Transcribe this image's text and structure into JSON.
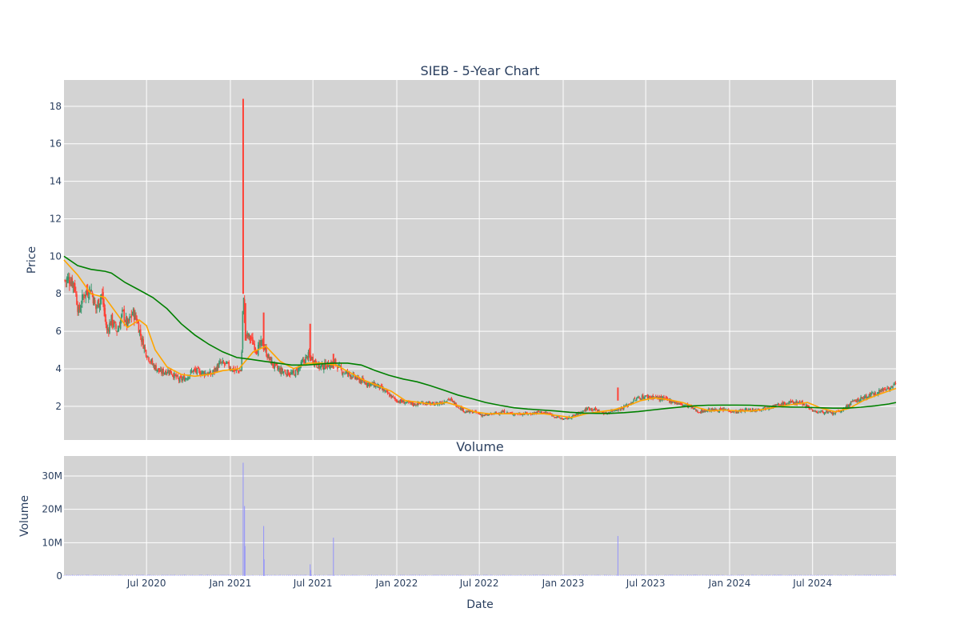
{
  "chart_data": [
    {
      "type": "candlestick",
      "title": "SIEB - 5-Year Chart",
      "ylabel": "Price",
      "ylim": [
        0.2,
        19.4
      ],
      "yticks": [
        2,
        4,
        6,
        8,
        10,
        12,
        14,
        16,
        18
      ],
      "ytick_labels": [
        "2",
        "4",
        "6",
        "8",
        "10",
        "12",
        "14",
        "16",
        "18"
      ],
      "xlim": [
        "2020-01-02",
        "2024-12-31"
      ],
      "grid": true,
      "plot_background": "#d3d3d3",
      "colors": {
        "increasing": "#3d9970",
        "decreasing": "#ff4136",
        "ma_short": "#ffa500",
        "ma_long": "#008000"
      },
      "close_path": [
        [
          "2020-01-02",
          8.7
        ],
        [
          "2020-01-15",
          8.8
        ],
        [
          "2020-01-25",
          8.5
        ],
        [
          "2020-02-03",
          7.0
        ],
        [
          "2020-02-15",
          8.0
        ],
        [
          "2020-03-01",
          8.3
        ],
        [
          "2020-03-12",
          7.2
        ],
        [
          "2020-03-25",
          8.0
        ],
        [
          "2020-04-05",
          6.0
        ],
        [
          "2020-04-15",
          6.6
        ],
        [
          "2020-04-28",
          6.0
        ],
        [
          "2020-05-10",
          7.0
        ],
        [
          "2020-05-20",
          6.3
        ],
        [
          "2020-06-01",
          7.0
        ],
        [
          "2020-06-10",
          6.6
        ],
        [
          "2020-06-20",
          5.6
        ],
        [
          "2020-07-01",
          4.8
        ],
        [
          "2020-07-15",
          4.2
        ],
        [
          "2020-08-01",
          3.8
        ],
        [
          "2020-08-20",
          3.9
        ],
        [
          "2020-09-10",
          3.4
        ],
        [
          "2020-09-25",
          3.5
        ],
        [
          "2020-10-10",
          3.9
        ],
        [
          "2020-11-01",
          3.8
        ],
        [
          "2020-11-20",
          3.7
        ],
        [
          "2020-12-10",
          4.3
        ],
        [
          "2020-12-25",
          4.2
        ],
        [
          "2021-01-10",
          3.9
        ],
        [
          "2021-01-25",
          3.9
        ],
        [
          "2021-01-29",
          8.0
        ],
        [
          "2021-02-03",
          5.8
        ],
        [
          "2021-02-15",
          5.6
        ],
        [
          "2021-02-28",
          5.0
        ],
        [
          "2021-03-12",
          5.4
        ],
        [
          "2021-03-25",
          4.6
        ],
        [
          "2021-04-05",
          4.2
        ],
        [
          "2021-04-20",
          3.9
        ],
        [
          "2021-05-05",
          3.8
        ],
        [
          "2021-05-20",
          3.7
        ],
        [
          "2021-06-05",
          4.2
        ],
        [
          "2021-06-20",
          4.7
        ],
        [
          "2021-07-01",
          4.5
        ],
        [
          "2021-07-15",
          4.1
        ],
        [
          "2021-08-01",
          4.2
        ],
        [
          "2021-08-20",
          4.3
        ],
        [
          "2021-09-01",
          3.9
        ],
        [
          "2021-09-20",
          3.7
        ],
        [
          "2021-10-10",
          3.4
        ],
        [
          "2021-11-01",
          3.2
        ],
        [
          "2021-11-20",
          3.1
        ],
        [
          "2021-12-10",
          2.7
        ],
        [
          "2022-01-01",
          2.3
        ],
        [
          "2022-01-20",
          2.2
        ],
        [
          "2022-02-10",
          2.1
        ],
        [
          "2022-03-01",
          2.2
        ],
        [
          "2022-03-20",
          2.1
        ],
        [
          "2022-04-10",
          2.2
        ],
        [
          "2022-04-25",
          2.4
        ],
        [
          "2022-05-10",
          2.1
        ],
        [
          "2022-06-01",
          1.7
        ],
        [
          "2022-06-20",
          1.7
        ],
        [
          "2022-07-10",
          1.5
        ],
        [
          "2022-08-01",
          1.6
        ],
        [
          "2022-08-20",
          1.7
        ],
        [
          "2022-09-10",
          1.6
        ],
        [
          "2022-10-01",
          1.6
        ],
        [
          "2022-10-20",
          1.6
        ],
        [
          "2022-11-10",
          1.7
        ],
        [
          "2022-12-01",
          1.6
        ],
        [
          "2022-12-20",
          1.4
        ],
        [
          "2023-01-05",
          1.3
        ],
        [
          "2023-01-25",
          1.5
        ],
        [
          "2023-02-10",
          1.7
        ],
        [
          "2023-02-25",
          1.9
        ],
        [
          "2023-03-15",
          1.8
        ],
        [
          "2023-04-05",
          1.6
        ],
        [
          "2023-04-20",
          1.8
        ],
        [
          "2023-05-10",
          1.9
        ],
        [
          "2023-05-25",
          2.1
        ],
        [
          "2023-06-10",
          2.4
        ],
        [
          "2023-06-25",
          2.5
        ],
        [
          "2023-07-15",
          2.5
        ],
        [
          "2023-08-05",
          2.4
        ],
        [
          "2023-08-25",
          2.3
        ],
        [
          "2023-09-15",
          2.1
        ],
        [
          "2023-10-05",
          2.0
        ],
        [
          "2023-10-25",
          1.7
        ],
        [
          "2023-11-15",
          1.8
        ],
        [
          "2023-12-05",
          1.8
        ],
        [
          "2023-12-25",
          1.8
        ],
        [
          "2024-01-15",
          1.7
        ],
        [
          "2024-02-05",
          1.8
        ],
        [
          "2024-02-25",
          1.8
        ],
        [
          "2024-03-15",
          1.9
        ],
        [
          "2024-04-05",
          2.0
        ],
        [
          "2024-04-25",
          2.1
        ],
        [
          "2024-05-15",
          2.2
        ],
        [
          "2024-06-05",
          2.2
        ],
        [
          "2024-06-20",
          2.0
        ],
        [
          "2024-07-05",
          1.7
        ],
        [
          "2024-07-25",
          1.7
        ],
        [
          "2024-08-15",
          1.6
        ],
        [
          "2024-09-05",
          1.8
        ],
        [
          "2024-09-25",
          2.2
        ],
        [
          "2024-10-15",
          2.4
        ],
        [
          "2024-11-05",
          2.6
        ],
        [
          "2024-11-25",
          2.8
        ],
        [
          "2024-12-15",
          3.0
        ],
        [
          "2024-12-31",
          3.1
        ]
      ],
      "spikes": [
        {
          "date": "2021-01-29",
          "low": 8.0,
          "high": 18.4
        },
        {
          "date": "2021-02-03",
          "low": 5.5,
          "high": 7.5
        },
        {
          "date": "2021-03-15",
          "low": 5.0,
          "high": 7.0
        },
        {
          "date": "2021-06-25",
          "low": 4.4,
          "high": 6.4
        },
        {
          "date": "2021-08-15",
          "low": 4.0,
          "high": 4.8
        },
        {
          "date": "2023-05-01",
          "low": 2.3,
          "high": 3.0
        }
      ],
      "ma_short": [
        [
          "2020-01-02",
          9.8
        ],
        [
          "2020-02-01",
          9.0
        ],
        [
          "2020-03-01",
          8.0
        ],
        [
          "2020-04-01",
          7.8
        ],
        [
          "2020-05-01",
          6.8
        ],
        [
          "2020-05-20",
          6.2
        ],
        [
          "2020-06-15",
          6.6
        ],
        [
          "2020-07-01",
          6.3
        ],
        [
          "2020-07-20",
          5.0
        ],
        [
          "2020-08-15",
          4.1
        ],
        [
          "2020-09-15",
          3.7
        ],
        [
          "2020-10-15",
          3.6
        ],
        [
          "2020-11-15",
          3.7
        ],
        [
          "2020-12-15",
          3.9
        ],
        [
          "2021-01-20",
          4.0
        ],
        [
          "2021-02-20",
          4.9
        ],
        [
          "2021-03-20",
          5.2
        ],
        [
          "2021-04-20",
          4.4
        ],
        [
          "2021-05-20",
          4.0
        ],
        [
          "2021-06-20",
          4.3
        ],
        [
          "2021-07-20",
          4.3
        ],
        [
          "2021-08-20",
          4.2
        ],
        [
          "2021-09-20",
          3.8
        ],
        [
          "2021-10-20",
          3.4
        ],
        [
          "2021-11-20",
          3.1
        ],
        [
          "2021-12-20",
          2.8
        ],
        [
          "2022-01-20",
          2.3
        ],
        [
          "2022-02-20",
          2.2
        ],
        [
          "2022-03-20",
          2.1
        ],
        [
          "2022-04-20",
          2.2
        ],
        [
          "2022-05-20",
          2.0
        ],
        [
          "2022-06-20",
          1.7
        ],
        [
          "2022-07-20",
          1.6
        ],
        [
          "2022-08-20",
          1.6
        ],
        [
          "2022-09-20",
          1.6
        ],
        [
          "2022-10-20",
          1.6
        ],
        [
          "2022-11-20",
          1.6
        ],
        [
          "2022-12-20",
          1.5
        ],
        [
          "2023-01-20",
          1.4
        ],
        [
          "2023-02-20",
          1.6
        ],
        [
          "2023-03-20",
          1.7
        ],
        [
          "2023-04-20",
          1.8
        ],
        [
          "2023-05-20",
          2.0
        ],
        [
          "2023-06-20",
          2.3
        ],
        [
          "2023-07-20",
          2.45
        ],
        [
          "2023-08-20",
          2.35
        ],
        [
          "2023-09-20",
          2.2
        ],
        [
          "2023-10-20",
          1.95
        ],
        [
          "2023-11-20",
          1.75
        ],
        [
          "2023-12-20",
          1.8
        ],
        [
          "2024-01-20",
          1.75
        ],
        [
          "2024-02-20",
          1.75
        ],
        [
          "2024-03-20",
          1.85
        ],
        [
          "2024-04-20",
          2.0
        ],
        [
          "2024-05-20",
          2.1
        ],
        [
          "2024-06-20",
          2.2
        ],
        [
          "2024-07-20",
          1.9
        ],
        [
          "2024-08-20",
          1.7
        ],
        [
          "2024-09-20",
          1.9
        ],
        [
          "2024-10-20",
          2.3
        ],
        [
          "2024-11-20",
          2.6
        ],
        [
          "2024-12-31",
          2.95
        ]
      ],
      "ma_long": [
        [
          "2020-01-02",
          10.0
        ],
        [
          "2020-02-01",
          9.5
        ],
        [
          "2020-03-01",
          9.3
        ],
        [
          "2020-04-01",
          9.2
        ],
        [
          "2020-04-15",
          9.1
        ],
        [
          "2020-05-15",
          8.6
        ],
        [
          "2020-06-15",
          8.2
        ],
        [
          "2020-07-15",
          7.8
        ],
        [
          "2020-08-15",
          7.2
        ],
        [
          "2020-09-15",
          6.4
        ],
        [
          "2020-10-15",
          5.8
        ],
        [
          "2020-11-15",
          5.3
        ],
        [
          "2020-12-15",
          4.9
        ],
        [
          "2021-01-15",
          4.6
        ],
        [
          "2021-02-15",
          4.5
        ],
        [
          "2021-03-15",
          4.4
        ],
        [
          "2021-04-15",
          4.3
        ],
        [
          "2021-05-15",
          4.2
        ],
        [
          "2021-06-15",
          4.2
        ],
        [
          "2021-07-15",
          4.25
        ],
        [
          "2021-08-15",
          4.3
        ],
        [
          "2021-09-15",
          4.3
        ],
        [
          "2021-10-15",
          4.2
        ],
        [
          "2021-11-15",
          3.9
        ],
        [
          "2021-12-15",
          3.65
        ],
        [
          "2022-01-15",
          3.45
        ],
        [
          "2022-02-15",
          3.3
        ],
        [
          "2022-03-15",
          3.1
        ],
        [
          "2022-04-15",
          2.85
        ],
        [
          "2022-05-15",
          2.6
        ],
        [
          "2022-06-15",
          2.4
        ],
        [
          "2022-07-15",
          2.2
        ],
        [
          "2022-08-15",
          2.05
        ],
        [
          "2022-09-15",
          1.92
        ],
        [
          "2022-10-15",
          1.85
        ],
        [
          "2022-11-15",
          1.8
        ],
        [
          "2022-12-15",
          1.75
        ],
        [
          "2023-01-15",
          1.68
        ],
        [
          "2023-02-15",
          1.64
        ],
        [
          "2023-03-15",
          1.62
        ],
        [
          "2023-04-15",
          1.62
        ],
        [
          "2023-05-15",
          1.66
        ],
        [
          "2023-06-15",
          1.72
        ],
        [
          "2023-07-15",
          1.8
        ],
        [
          "2023-08-15",
          1.88
        ],
        [
          "2023-09-15",
          1.96
        ],
        [
          "2023-10-15",
          2.02
        ],
        [
          "2023-11-15",
          2.05
        ],
        [
          "2023-12-15",
          2.06
        ],
        [
          "2024-01-15",
          2.06
        ],
        [
          "2024-02-15",
          2.05
        ],
        [
          "2024-03-15",
          2.02
        ],
        [
          "2024-04-15",
          1.98
        ],
        [
          "2024-05-15",
          1.96
        ],
        [
          "2024-06-15",
          1.95
        ],
        [
          "2024-07-15",
          1.92
        ],
        [
          "2024-08-15",
          1.9
        ],
        [
          "2024-09-15",
          1.9
        ],
        [
          "2024-10-15",
          1.95
        ],
        [
          "2024-11-15",
          2.02
        ],
        [
          "2024-12-15",
          2.12
        ],
        [
          "2024-12-31",
          2.2
        ]
      ]
    },
    {
      "type": "bar",
      "title": "Volume",
      "ylabel": "Volume",
      "xlabel": "Date",
      "ylim": [
        0,
        36000000
      ],
      "yticks": [
        0,
        10000000,
        20000000,
        30000000
      ],
      "ytick_labels": [
        "0",
        "10M",
        "20M",
        "30M"
      ],
      "xticks": [
        "2020-07-01",
        "2021-01-01",
        "2021-07-01",
        "2022-01-01",
        "2022-07-01",
        "2023-01-01",
        "2023-07-01",
        "2024-01-01",
        "2024-07-01"
      ],
      "xtick_labels": [
        "Jul 2020",
        "Jan 2021",
        "Jul 2021",
        "Jan 2022",
        "Jul 2022",
        "Jan 2023",
        "Jul 2023",
        "Jan 2024",
        "Jul 2024"
      ],
      "xlim": [
        "2020-01-02",
        "2024-12-31"
      ],
      "grid": true,
      "plot_background": "#d3d3d3",
      "bar_color": "#8c8cff",
      "values": [
        {
          "date": "2021-01-29",
          "value": 34000000
        },
        {
          "date": "2021-02-01",
          "value": 21000000
        },
        {
          "date": "2021-02-02",
          "value": 9000000
        },
        {
          "date": "2021-03-15",
          "value": 15000000
        },
        {
          "date": "2021-03-16",
          "value": 5000000
        },
        {
          "date": "2021-06-25",
          "value": 3500000
        },
        {
          "date": "2021-06-26",
          "value": 1800000
        },
        {
          "date": "2021-08-15",
          "value": 11500000
        },
        {
          "date": "2023-05-01",
          "value": 12000000
        }
      ]
    }
  ]
}
